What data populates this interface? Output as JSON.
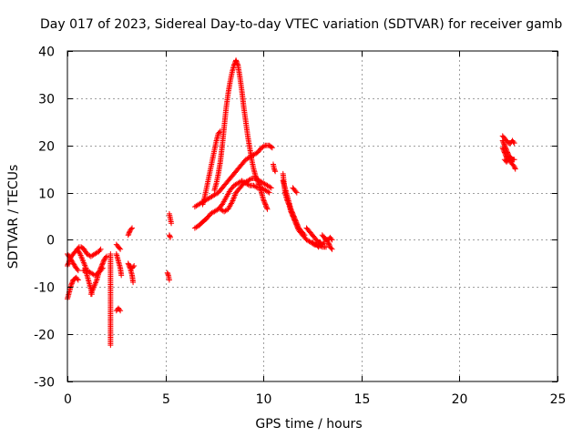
{
  "chart_data": {
    "type": "scatter",
    "title": "Day 017 of 2023, Sidereal Day-to-day VTEC variation (SDTVAR) for receiver gamb",
    "xlabel": "GPS time / hours",
    "ylabel": "SDTVAR / TECUs",
    "xlim": [
      0,
      25
    ],
    "ylim": [
      -30,
      40
    ],
    "xticks": [
      0,
      5,
      10,
      15,
      20,
      25
    ],
    "yticks": [
      -30,
      -20,
      -10,
      0,
      10,
      20,
      30,
      40
    ],
    "xtick_labels": [
      "0",
      "5",
      "10",
      "15",
      "20",
      "25"
    ],
    "ytick_labels": [
      "-30",
      "-20",
      "-10",
      "0",
      "10",
      "20",
      "30",
      "40"
    ],
    "grid": true,
    "marker": "+",
    "colors": {
      "points": "#ff0000",
      "grid": "#a0a0a0",
      "axis": "#000000",
      "background": "#ffffff"
    },
    "series": [
      {
        "name": "SDTVAR",
        "segments": [
          [
            [
              0.0,
              -12.5
            ],
            [
              0.1,
              -11.0
            ],
            [
              0.2,
              -9.5
            ],
            [
              0.3,
              -8.5
            ],
            [
              0.45,
              -8.0
            ],
            [
              0.55,
              -8.5
            ]
          ],
          [
            [
              0.0,
              -5.5
            ],
            [
              0.1,
              -4.5
            ],
            [
              0.2,
              -3.5
            ],
            [
              0.3,
              -3.0
            ],
            [
              0.4,
              -2.5
            ],
            [
              0.5,
              -2.0
            ],
            [
              0.6,
              -1.5
            ]
          ],
          [
            [
              0.0,
              -3.0
            ],
            [
              0.15,
              -4.0
            ],
            [
              0.3,
              -5.0
            ],
            [
              0.45,
              -6.0
            ],
            [
              0.55,
              -6.5
            ]
          ],
          [
            [
              0.5,
              -2.0
            ],
            [
              0.65,
              -3.0
            ],
            [
              0.8,
              -4.5
            ],
            [
              0.95,
              -6.0
            ]
          ],
          [
            [
              0.7,
              -1.5
            ],
            [
              0.85,
              -2.0
            ],
            [
              1.0,
              -3.0
            ],
            [
              1.2,
              -3.5
            ],
            [
              1.4,
              -3.0
            ],
            [
              1.6,
              -2.5
            ],
            [
              1.7,
              -2.0
            ]
          ],
          [
            [
              0.8,
              -6.5
            ],
            [
              1.0,
              -6.5
            ],
            [
              1.2,
              -7.0
            ],
            [
              1.4,
              -7.5
            ],
            [
              1.6,
              -7.0
            ],
            [
              1.7,
              -6.5
            ],
            [
              1.8,
              -6.0
            ]
          ],
          [
            [
              0.9,
              -6.0
            ],
            [
              1.0,
              -7.5
            ],
            [
              1.1,
              -9.0
            ],
            [
              1.2,
              -10.5
            ],
            [
              1.25,
              -11.5
            ]
          ],
          [
            [
              1.2,
              -11.5
            ],
            [
              1.35,
              -10.0
            ],
            [
              1.5,
              -8.5
            ],
            [
              1.6,
              -7.0
            ],
            [
              1.7,
              -6.0
            ],
            [
              1.8,
              -5.0
            ],
            [
              1.9,
              -4.0
            ],
            [
              2.0,
              -3.5
            ]
          ],
          [
            [
              2.2,
              -3.0
            ],
            [
              2.2,
              -6.0
            ],
            [
              2.2,
              -15.0
            ],
            [
              2.2,
              -22.3
            ]
          ],
          [
            [
              2.5,
              -15.0
            ],
            [
              2.6,
              -14.5
            ],
            [
              2.7,
              -15.0
            ]
          ],
          [
            [
              2.5,
              -3.0
            ],
            [
              2.6,
              -4.5
            ],
            [
              2.7,
              -6.0
            ],
            [
              2.75,
              -7.5
            ]
          ],
          [
            [
              2.5,
              -1.0
            ],
            [
              2.6,
              -1.5
            ],
            [
              2.7,
              -2.0
            ]
          ],
          [
            [
              3.1,
              1.0
            ],
            [
              3.2,
              2.0
            ],
            [
              3.3,
              2.5
            ]
          ],
          [
            [
              3.1,
              -5.0
            ],
            [
              3.2,
              -6.0
            ],
            [
              3.3,
              -7.5
            ],
            [
              3.35,
              -9.0
            ]
          ],
          [
            [
              3.2,
              -5.5
            ],
            [
              3.3,
              -6.0
            ],
            [
              3.4,
              -5.5
            ]
          ],
          [
            [
              5.2,
              5.5
            ],
            [
              5.25,
              4.5
            ],
            [
              5.3,
              3.5
            ]
          ],
          [
            [
              5.2,
              1.0
            ],
            [
              5.25,
              0.5
            ]
          ],
          [
            [
              5.1,
              -7.0
            ],
            [
              5.15,
              -7.5
            ],
            [
              5.2,
              -8.5
            ]
          ],
          [
            [
              6.5,
              2.5
            ],
            [
              6.7,
              3.0
            ],
            [
              6.9,
              3.8
            ],
            [
              7.1,
              4.5
            ],
            [
              7.3,
              5.5
            ],
            [
              7.5,
              6.0
            ],
            [
              7.7,
              6.5
            ],
            [
              7.9,
              7.5
            ],
            [
              8.1,
              9.0
            ],
            [
              8.3,
              10.5
            ],
            [
              8.5,
              11.5
            ],
            [
              8.7,
              12.0
            ],
            [
              8.9,
              12.5
            ],
            [
              9.1,
              12.0
            ],
            [
              9.3,
              11.5
            ],
            [
              9.5,
              11.5
            ],
            [
              9.7,
              11.0
            ],
            [
              9.9,
              11.0
            ],
            [
              10.1,
              10.5
            ],
            [
              10.3,
              10.0
            ]
          ],
          [
            [
              6.5,
              7.0
            ],
            [
              6.7,
              7.5
            ],
            [
              6.9,
              8.0
            ],
            [
              7.1,
              8.5
            ],
            [
              7.3,
              9.0
            ],
            [
              7.5,
              9.5
            ],
            [
              7.7,
              10.0
            ],
            [
              7.9,
              11.0
            ],
            [
              8.1,
              12.0
            ],
            [
              8.3,
              13.0
            ],
            [
              8.5,
              14.0
            ],
            [
              8.7,
              15.0
            ],
            [
              8.9,
              16.0
            ],
            [
              9.1,
              17.0
            ],
            [
              9.3,
              17.5
            ],
            [
              9.5,
              18.0
            ],
            [
              9.7,
              18.5
            ],
            [
              9.9,
              19.5
            ],
            [
              10.1,
              20.0
            ],
            [
              10.3,
              20.0
            ],
            [
              10.45,
              19.5
            ]
          ],
          [
            [
              6.9,
              7.5
            ],
            [
              7.0,
              9.0
            ],
            [
              7.1,
              11.0
            ],
            [
              7.2,
              13.0
            ],
            [
              7.3,
              15.0
            ],
            [
              7.4,
              17.0
            ],
            [
              7.5,
              19.0
            ],
            [
              7.6,
              21.0
            ],
            [
              7.7,
              22.5
            ],
            [
              7.8,
              23.0
            ]
          ],
          [
            [
              7.5,
              10.5
            ],
            [
              7.6,
              12.0
            ],
            [
              7.7,
              14.0
            ],
            [
              7.8,
              16.5
            ],
            [
              7.9,
              20.0
            ],
            [
              8.0,
              24.0
            ],
            [
              8.1,
              28.0
            ],
            [
              8.2,
              31.0
            ],
            [
              8.3,
              33.5
            ],
            [
              8.4,
              35.5
            ],
            [
              8.5,
              37.0
            ],
            [
              8.6,
              38.0
            ]
          ],
          [
            [
              8.6,
              38.0
            ],
            [
              8.7,
              37.0
            ],
            [
              8.8,
              34.5
            ],
            [
              8.9,
              31.5
            ],
            [
              9.0,
              28.0
            ],
            [
              9.1,
              25.0
            ],
            [
              9.2,
              22.0
            ],
            [
              9.3,
              19.5
            ],
            [
              9.4,
              17.0
            ],
            [
              9.5,
              15.0
            ],
            [
              9.6,
              13.5
            ],
            [
              9.7,
              12.5
            ],
            [
              9.8,
              11.5
            ],
            [
              9.9,
              10.0
            ],
            [
              10.0,
              8.5
            ],
            [
              10.1,
              7.5
            ],
            [
              10.2,
              6.5
            ]
          ],
          [
            [
              7.8,
              6.5
            ],
            [
              8.0,
              6.0
            ],
            [
              8.2,
              6.5
            ],
            [
              8.4,
              8.0
            ],
            [
              8.6,
              10.0
            ],
            [
              8.8,
              11.0
            ],
            [
              9.0,
              12.0
            ],
            [
              9.2,
              12.5
            ],
            [
              9.4,
              13.0
            ],
            [
              9.6,
              13.0
            ],
            [
              9.8,
              12.5
            ],
            [
              10.0,
              12.0
            ],
            [
              10.2,
              11.5
            ],
            [
              10.4,
              11.0
            ]
          ],
          [
            [
              10.5,
              16.0
            ],
            [
              10.55,
              15.0
            ],
            [
              10.6,
              14.5
            ]
          ],
          [
            [
              11.0,
              14.0
            ],
            [
              11.05,
              12.0
            ],
            [
              11.1,
              10.0
            ],
            [
              11.2,
              8.5
            ],
            [
              11.3,
              7.5
            ],
            [
              11.4,
              6.0
            ],
            [
              11.5,
              5.0
            ],
            [
              11.6,
              4.0
            ],
            [
              11.7,
              3.0
            ],
            [
              11.8,
              2.0
            ],
            [
              11.9,
              1.5
            ],
            [
              12.0,
              1.0
            ],
            [
              12.1,
              0.5
            ],
            [
              12.2,
              0.0
            ],
            [
              12.4,
              -0.5
            ],
            [
              12.6,
              -1.0
            ],
            [
              12.8,
              -1.0
            ],
            [
              13.0,
              -1.5
            ],
            [
              13.2,
              -1.5
            ]
          ],
          [
            [
              11.0,
              12.5
            ],
            [
              11.1,
              11.0
            ],
            [
              11.2,
              9.5
            ],
            [
              11.3,
              8.0
            ],
            [
              11.4,
              6.5
            ],
            [
              11.5,
              5.5
            ],
            [
              11.6,
              4.5
            ],
            [
              11.7,
              3.5
            ],
            [
              11.8,
              2.5
            ],
            [
              11.9,
              2.0
            ],
            [
              12.0,
              1.5
            ],
            [
              12.1,
              1.0
            ]
          ],
          [
            [
              11.5,
              11.0
            ],
            [
              11.6,
              10.5
            ],
            [
              11.7,
              10.0
            ]
          ],
          [
            [
              12.2,
              2.5
            ],
            [
              12.3,
              2.0
            ],
            [
              12.4,
              1.5
            ],
            [
              12.5,
              1.0
            ],
            [
              12.6,
              0.5
            ],
            [
              12.7,
              0.0
            ],
            [
              12.8,
              -0.5
            ],
            [
              12.9,
              -0.5
            ],
            [
              13.0,
              -1.0
            ],
            [
              13.1,
              -0.5
            ]
          ],
          [
            [
              12.5,
              -0.5
            ],
            [
              12.6,
              -1.0
            ],
            [
              12.7,
              -1.0
            ],
            [
              12.8,
              -1.5
            ],
            [
              13.0,
              -1.0
            ]
          ],
          [
            [
              13.0,
              1.0
            ],
            [
              13.1,
              0.5
            ],
            [
              13.2,
              0.0
            ],
            [
              13.3,
              -0.5
            ],
            [
              13.4,
              -1.5
            ],
            [
              13.5,
              -2.0
            ]
          ],
          [
            [
              13.1,
              0.5
            ],
            [
              13.2,
              0.0
            ],
            [
              13.3,
              0.0
            ],
            [
              13.4,
              0.5
            ],
            [
              13.5,
              0.0
            ]
          ],
          [
            [
              22.2,
              22.0
            ],
            [
              22.3,
              21.5
            ],
            [
              22.4,
              21.0
            ],
            [
              22.5,
              20.5
            ],
            [
              22.6,
              20.5
            ],
            [
              22.7,
              21.0
            ],
            [
              22.8,
              20.5
            ]
          ],
          [
            [
              22.2,
              21.0
            ],
            [
              22.3,
              20.0
            ],
            [
              22.4,
              19.0
            ],
            [
              22.5,
              18.0
            ],
            [
              22.6,
              17.5
            ],
            [
              22.7,
              17.0
            ],
            [
              22.8,
              17.0
            ]
          ],
          [
            [
              22.2,
              19.5
            ],
            [
              22.3,
              18.5
            ],
            [
              22.4,
              17.5
            ],
            [
              22.5,
              17.0
            ],
            [
              22.6,
              16.5
            ],
            [
              22.7,
              16.0
            ],
            [
              22.8,
              15.5
            ],
            [
              22.85,
              15.0
            ]
          ],
          [
            [
              22.3,
              17.0
            ],
            [
              22.4,
              16.5
            ],
            [
              22.5,
              17.0
            ],
            [
              22.6,
              17.5
            ]
          ]
        ]
      }
    ]
  }
}
